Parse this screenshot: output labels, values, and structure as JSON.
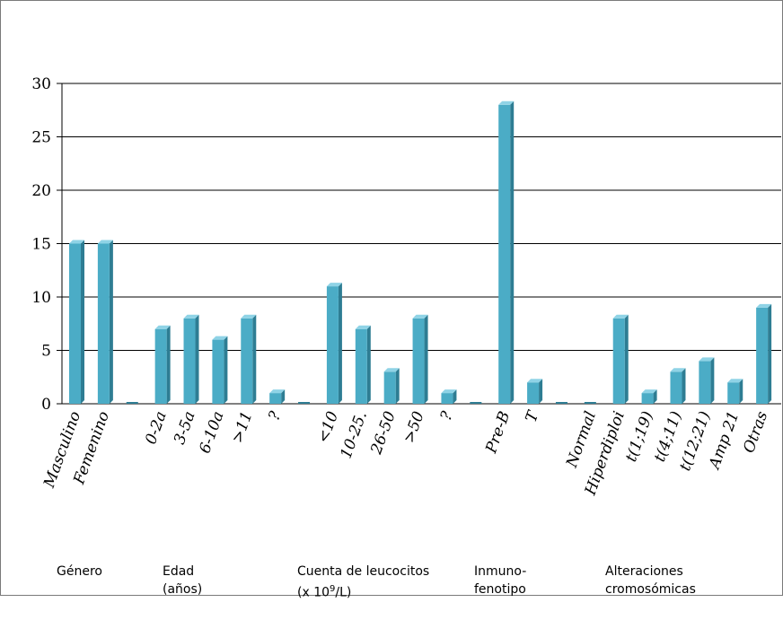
{
  "chart_data": {
    "type": "bar",
    "categories": [
      "Masculino",
      "Femenino",
      "",
      "0-2a",
      "3-5a",
      "6-10a",
      ">11",
      "?",
      "",
      "<10",
      "10-25.",
      "26-50",
      ">50",
      "?",
      "",
      "Pre-B",
      "T",
      "",
      "Normal",
      "Hiperdiploi",
      "t(1;19)",
      "t(4;11)",
      "t(12;21)",
      "Amp 21",
      "Otras"
    ],
    "values": [
      15,
      15,
      0,
      7,
      8,
      6,
      8,
      1,
      0,
      11,
      7,
      3,
      8,
      1,
      0,
      28,
      2,
      0,
      0,
      8,
      1,
      3,
      4,
      2,
      9
    ],
    "yticks": [
      0,
      5,
      10,
      15,
      20,
      25,
      30
    ],
    "ylim": [
      0,
      30
    ],
    "grid": true,
    "bar_color": "#4bacc6",
    "groups": [
      {
        "line1": "Género",
        "line2": ""
      },
      {
        "line1": "Edad",
        "line2": "(años)"
      },
      {
        "line1": "Cuenta de leucocitos",
        "line2": "(x 10",
        "sup": "9",
        "line2_end": "/L)"
      },
      {
        "line1": "Inmuno-",
        "line2": "fenotipo"
      },
      {
        "line1": "Alteraciones",
        "line2": "cromosómicas"
      }
    ]
  }
}
